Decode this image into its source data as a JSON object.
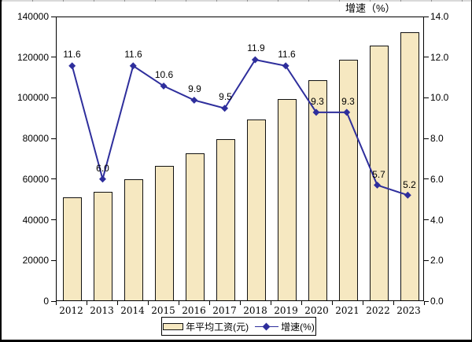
{
  "colors": {
    "bar_fill": "#F6E8C1",
    "bar_border": "#111111",
    "line": "#2E2E9C",
    "text": "#000000",
    "frame": "#000000"
  },
  "axis2_title": "增速（%）",
  "legend": {
    "bar_label": "年平均工资(元)",
    "line_label": "增速(%)"
  },
  "chart_data": {
    "type": "bar",
    "subtype": "bar+line combo, secondary right axis",
    "categories": [
      "2012",
      "2013",
      "2014",
      "2015",
      "2016",
      "2017",
      "2018",
      "2019",
      "2020",
      "2021",
      "2022",
      "2023"
    ],
    "series": [
      {
        "name": "年平均工资(元)",
        "type": "bar",
        "axis": "left",
        "values": [
          50500,
          53500,
          59700,
          66000,
          72500,
          79400,
          88900,
          99150,
          108400,
          118500,
          125200,
          131800
        ]
      },
      {
        "name": "增速(%)",
        "type": "line",
        "axis": "right",
        "values": [
          11.6,
          6.0,
          11.6,
          10.6,
          9.9,
          9.5,
          11.9,
          11.6,
          9.3,
          9.3,
          5.7,
          5.2
        ],
        "labels": [
          "11.6",
          "6.0",
          "11.6",
          "10.6",
          "9.9",
          "9.5",
          "11.9",
          "11.6",
          "9.3",
          "9.3",
          "5.7",
          "5.2"
        ]
      }
    ],
    "y_left": {
      "min": 0,
      "max": 140000,
      "step": 20000,
      "ticks": [
        "0",
        "20000",
        "40000",
        "60000",
        "80000",
        "100000",
        "120000",
        "140000"
      ]
    },
    "y_right": {
      "min": 0,
      "max": 14,
      "step": 2,
      "ticks": [
        "0.0",
        "2.0",
        "4.0",
        "6.0",
        "8.0",
        "10.0",
        "12.0",
        "14.0"
      ],
      "title": "增速（%）"
    },
    "legend_position": "bottom",
    "grid": false
  }
}
